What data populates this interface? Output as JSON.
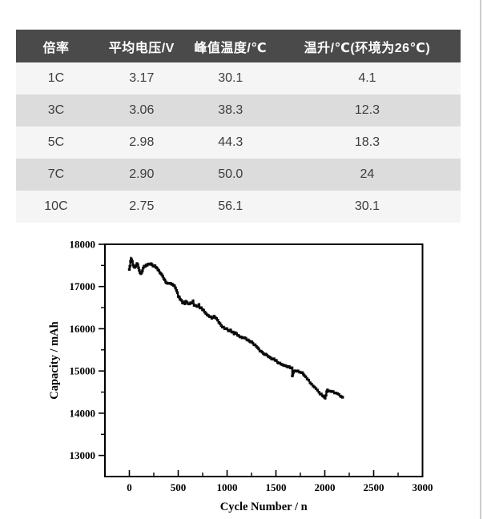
{
  "page": {
    "background": "#ffffff",
    "right_edge_color": "#cccccc"
  },
  "table": {
    "header_bg": "#4a4a4a",
    "header_text_color": "#ffffff",
    "row_bg_light": "#f5f5f5",
    "row_bg_dark": "#dcdcdc",
    "body_text_color": "#3d3d3d",
    "columns": [
      "倍率",
      "平均电压/V",
      "峰值温度/℃",
      "温升/℃(环境为26℃)"
    ],
    "rows": [
      [
        "1C",
        "3.17",
        "30.1",
        "4.1"
      ],
      [
        "3C",
        "3.06",
        "38.3",
        "12.3"
      ],
      [
        "5C",
        "2.98",
        "44.3",
        "18.3"
      ],
      [
        "7C",
        "2.90",
        "50.0",
        "24"
      ],
      [
        "10C",
        "2.75",
        "56.1",
        "30.1"
      ]
    ]
  },
  "chart_data": {
    "type": "scatter",
    "title": "",
    "xlabel": "Cycle Number / n",
    "ylabel": "Capacity / mAh",
    "xlim": [
      -250,
      3000
    ],
    "ylim": [
      12500,
      18000
    ],
    "x_ticks": [
      0,
      500,
      1000,
      1500,
      2000,
      2500,
      3000
    ],
    "y_ticks": [
      13000,
      14000,
      15000,
      16000,
      17000,
      18000
    ],
    "x_minor_ticks": [
      250,
      750,
      1250,
      1750,
      2250,
      2750
    ],
    "y_minor_ticks": [
      13500,
      14500,
      15500,
      16500,
      17500
    ],
    "grid": false,
    "legend": "none",
    "frame_color": "#000000",
    "marker_color": "#0a0a0a",
    "series": [
      {
        "name": "capacity",
        "points": [
          [
            0,
            17400
          ],
          [
            6,
            17480
          ],
          [
            12,
            17580
          ],
          [
            18,
            17650
          ],
          [
            24,
            17640
          ],
          [
            30,
            17590
          ],
          [
            38,
            17520
          ],
          [
            46,
            17470
          ],
          [
            54,
            17440
          ],
          [
            62,
            17470
          ],
          [
            70,
            17505
          ],
          [
            78,
            17530
          ],
          [
            86,
            17510
          ],
          [
            94,
            17450
          ],
          [
            102,
            17390
          ],
          [
            110,
            17330
          ],
          [
            118,
            17300
          ],
          [
            126,
            17330
          ],
          [
            134,
            17390
          ],
          [
            142,
            17440
          ],
          [
            152,
            17470
          ],
          [
            162,
            17490
          ],
          [
            172,
            17505
          ],
          [
            182,
            17520
          ],
          [
            192,
            17540
          ],
          [
            202,
            17550
          ],
          [
            212,
            17540
          ],
          [
            222,
            17530
          ],
          [
            232,
            17520
          ],
          [
            242,
            17505
          ],
          [
            252,
            17490
          ],
          [
            262,
            17480
          ],
          [
            272,
            17455
          ],
          [
            282,
            17430
          ],
          [
            292,
            17405
          ],
          [
            302,
            17380
          ],
          [
            312,
            17350
          ],
          [
            322,
            17320
          ],
          [
            332,
            17280
          ],
          [
            342,
            17240
          ],
          [
            352,
            17195
          ],
          [
            362,
            17155
          ],
          [
            372,
            17120
          ],
          [
            382,
            17090
          ],
          [
            392,
            17070
          ],
          [
            402,
            17060
          ],
          [
            412,
            17075
          ],
          [
            422,
            17085
          ],
          [
            432,
            17065
          ],
          [
            442,
            17055
          ],
          [
            452,
            17045
          ],
          [
            462,
            17010
          ],
          [
            472,
            16960
          ],
          [
            482,
            16900
          ],
          [
            492,
            16840
          ],
          [
            502,
            16780
          ],
          [
            512,
            16730
          ],
          [
            520,
            16700
          ],
          [
            532,
            16660
          ],
          [
            544,
            16625
          ],
          [
            556,
            16650
          ],
          [
            568,
            16610
          ],
          [
            580,
            16655
          ],
          [
            592,
            16620
          ],
          [
            604,
            16585
          ],
          [
            616,
            16575
          ],
          [
            628,
            16630
          ],
          [
            640,
            16600
          ],
          [
            652,
            16640
          ],
          [
            664,
            16560
          ],
          [
            676,
            16545
          ],
          [
            688,
            16550
          ],
          [
            700,
            16525
          ],
          [
            712,
            16560
          ],
          [
            724,
            16505
          ],
          [
            736,
            16480
          ],
          [
            748,
            16450
          ],
          [
            760,
            16425
          ],
          [
            772,
            16395
          ],
          [
            784,
            16360
          ],
          [
            796,
            16335
          ],
          [
            808,
            16310
          ],
          [
            820,
            16295
          ],
          [
            832,
            16275
          ],
          [
            844,
            16255
          ],
          [
            856,
            16270
          ],
          [
            868,
            16285
          ],
          [
            880,
            16255
          ],
          [
            892,
            16225
          ],
          [
            904,
            16190
          ],
          [
            916,
            16150
          ],
          [
            928,
            16120
          ],
          [
            940,
            16085
          ],
          [
            952,
            16055
          ],
          [
            964,
            16030
          ],
          [
            976,
            16010
          ],
          [
            988,
            15995
          ],
          [
            1000,
            15985
          ],
          [
            1012,
            15970
          ],
          [
            1024,
            15950
          ],
          [
            1036,
            15960
          ],
          [
            1048,
            15935
          ],
          [
            1060,
            15905
          ],
          [
            1072,
            15890
          ],
          [
            1084,
            15900
          ],
          [
            1096,
            15880
          ],
          [
            1108,
            15855
          ],
          [
            1120,
            15840
          ],
          [
            1132,
            15820
          ],
          [
            1144,
            15800
          ],
          [
            1156,
            15790
          ],
          [
            1168,
            15800
          ],
          [
            1180,
            15780
          ],
          [
            1192,
            15760
          ],
          [
            1204,
            15740
          ],
          [
            1216,
            15725
          ],
          [
            1228,
            15710
          ],
          [
            1240,
            15700
          ],
          [
            1252,
            15680
          ],
          [
            1264,
            15665
          ],
          [
            1276,
            15640
          ],
          [
            1288,
            15610
          ],
          [
            1300,
            15575
          ],
          [
            1312,
            15540
          ],
          [
            1324,
            15510
          ],
          [
            1336,
            15485
          ],
          [
            1348,
            15465
          ],
          [
            1360,
            15445
          ],
          [
            1372,
            15425
          ],
          [
            1384,
            15405
          ],
          [
            1396,
            15390
          ],
          [
            1408,
            15370
          ],
          [
            1420,
            15355
          ],
          [
            1432,
            15340
          ],
          [
            1444,
            15320
          ],
          [
            1456,
            15305
          ],
          [
            1468,
            15290
          ],
          [
            1480,
            15270
          ],
          [
            1492,
            15250
          ],
          [
            1504,
            15230
          ],
          [
            1516,
            15215
          ],
          [
            1528,
            15200
          ],
          [
            1540,
            15185
          ],
          [
            1552,
            15170
          ],
          [
            1564,
            15155
          ],
          [
            1576,
            15140
          ],
          [
            1588,
            15130
          ],
          [
            1600,
            15120
          ],
          [
            1612,
            15110
          ],
          [
            1624,
            15100
          ],
          [
            1636,
            15090
          ],
          [
            1648,
            15082
          ],
          [
            1658,
            15075
          ],
          [
            1665,
            15068
          ],
          [
            1668,
            14880
          ],
          [
            1672,
            14920
          ],
          [
            1678,
            14975
          ],
          [
            1685,
            15005
          ],
          [
            1695,
            15010
          ],
          [
            1710,
            15000
          ],
          [
            1725,
            14995
          ],
          [
            1740,
            14985
          ],
          [
            1755,
            14975
          ],
          [
            1770,
            14955
          ],
          [
            1780,
            14935
          ],
          [
            1790,
            14905
          ],
          [
            1805,
            14870
          ],
          [
            1820,
            14830
          ],
          [
            1835,
            14780
          ],
          [
            1850,
            14730
          ],
          [
            1865,
            14690
          ],
          [
            1880,
            14650
          ],
          [
            1895,
            14610
          ],
          [
            1910,
            14570
          ],
          [
            1925,
            14535
          ],
          [
            1940,
            14500
          ],
          [
            1952,
            14468
          ],
          [
            1964,
            14440
          ],
          [
            1975,
            14415
          ],
          [
            1985,
            14390
          ],
          [
            1995,
            14370
          ],
          [
            2003,
            14360
          ],
          [
            2012,
            14440
          ],
          [
            2020,
            14505
          ],
          [
            2028,
            14540
          ],
          [
            2040,
            14535
          ],
          [
            2055,
            14525
          ],
          [
            2070,
            14510
          ],
          [
            2085,
            14495
          ],
          [
            2100,
            14480
          ],
          [
            2115,
            14465
          ],
          [
            2130,
            14450
          ],
          [
            2145,
            14435
          ],
          [
            2160,
            14420
          ],
          [
            2172,
            14405
          ],
          [
            2182,
            14390
          ]
        ]
      }
    ]
  }
}
